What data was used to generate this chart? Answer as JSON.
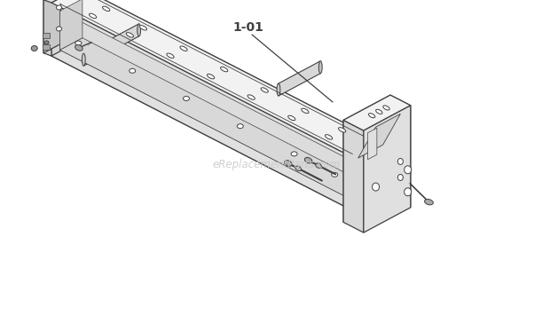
{
  "bg_color": "#ffffff",
  "line_color": "#404040",
  "fill_top": "#f2f2f2",
  "fill_front": "#e0e0e0",
  "fill_side": "#d8d8d8",
  "fill_bottom": "#c8c8c8",
  "fill_inner": "#ebebeb",
  "watermark_text": "eReplacementParts.com",
  "watermark_color": "#c8c8c8",
  "watermark_alpha": 0.85,
  "label_text": "1-01",
  "label_fontsize": 10,
  "fig_width": 6.2,
  "fig_height": 3.73,
  "dpi": 100
}
